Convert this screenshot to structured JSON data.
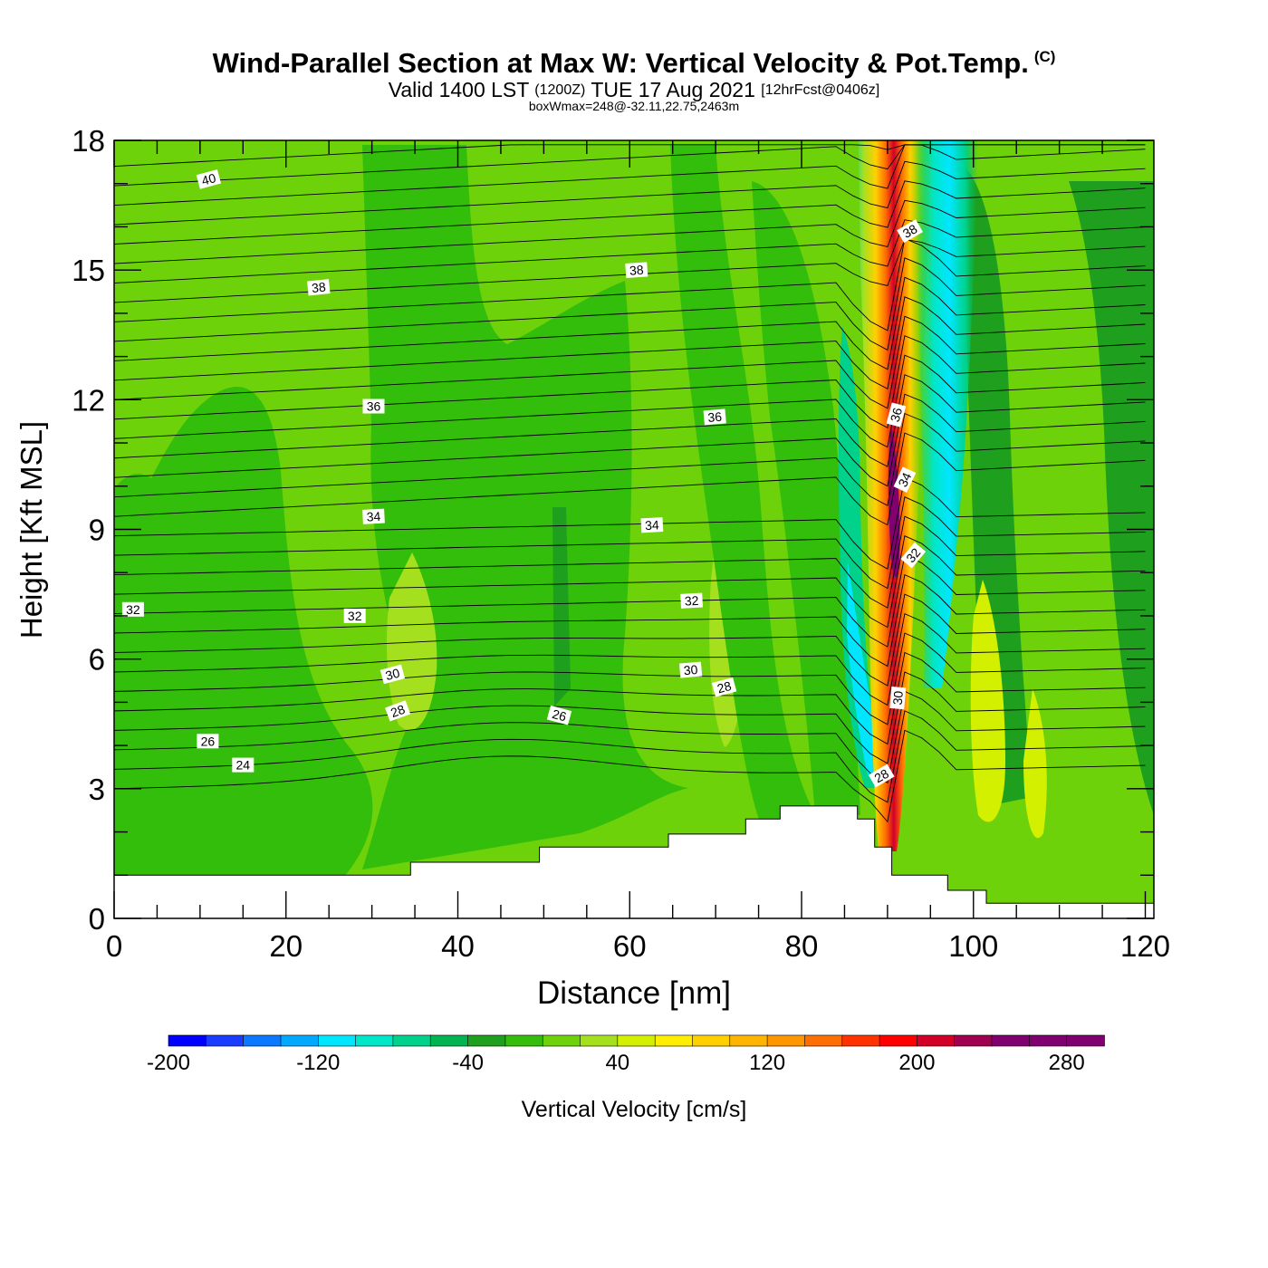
{
  "header": {
    "title": "Wind-Parallel Section at Max W: Vertical Velocity & Pot.Temp.",
    "copyright": "(C)",
    "valid_prefix": "Valid 1400 LST",
    "valid_utc": "(1200Z)",
    "valid_date": "TUE 17 Aug 2021",
    "forecast": "[12hrFcst@0406z]",
    "boxwmax": "boxWmax=248@-32.11,22.75,2463m"
  },
  "chart_data": {
    "type": "heatmap",
    "title": "Wind-Parallel Section at Max W: Vertical Velocity & Pot.Temp.",
    "xlabel": "Distance [nm]",
    "ylabel": "Height [Kft MSL]",
    "xlim": [
      0,
      121
    ],
    "ylim": [
      0,
      18
    ],
    "x_ticks": [
      0,
      20,
      40,
      60,
      80,
      100,
      120
    ],
    "y_ticks": [
      0,
      3,
      6,
      9,
      12,
      15,
      18
    ],
    "colorbar": {
      "label": "Vertical Velocity [cm/s]",
      "min": -200,
      "max": 300,
      "step": 20,
      "tick_labels": [
        "-200",
        "-120",
        "-40",
        "40",
        "120",
        "200",
        "280"
      ],
      "colors": [
        "#0000ff",
        "#1a3cff",
        "#0a78ff",
        "#00a8ff",
        "#00e6ff",
        "#00e6c8",
        "#00d28c",
        "#00b450",
        "#1ea01e",
        "#32be0a",
        "#6ed20a",
        "#a5e01e",
        "#d2f000",
        "#ffee00",
        "#ffd000",
        "#ffb400",
        "#ff9600",
        "#ff6e00",
        "#ff3200",
        "#ff0000",
        "#d20028",
        "#a00050",
        "#800070"
      ]
    },
    "terrain_kft": [
      [
        0,
        1.0
      ],
      [
        34.5,
        1.0
      ],
      [
        34.5,
        1.3
      ],
      [
        49.5,
        1.3
      ],
      [
        49.5,
        1.65
      ],
      [
        64.5,
        1.65
      ],
      [
        64.5,
        1.95
      ],
      [
        73.5,
        1.95
      ],
      [
        73.5,
        2.3
      ],
      [
        77.5,
        2.3
      ],
      [
        77.5,
        2.6
      ],
      [
        86.5,
        2.6
      ],
      [
        86.5,
        2.3
      ],
      [
        88.5,
        2.3
      ],
      [
        88.5,
        1.65
      ],
      [
        90.5,
        1.65
      ],
      [
        90.5,
        1.0
      ],
      [
        97,
        1.0
      ],
      [
        97,
        0.65
      ],
      [
        101.5,
        0.65
      ],
      [
        101.5,
        0.35
      ],
      [
        121,
        0.35
      ]
    ],
    "updraft_max_cm_s": 248,
    "isentrope_labels": [
      {
        "text": "40",
        "x": 11,
        "y": 17.1,
        "rot": -15
      },
      {
        "text": "38",
        "x": 23.8,
        "y": 14.6,
        "rot": -6
      },
      {
        "text": "38",
        "x": 60.8,
        "y": 15.0,
        "rot": -4
      },
      {
        "text": "38",
        "x": 92.6,
        "y": 15.9,
        "rot": -30
      },
      {
        "text": "36",
        "x": 30.2,
        "y": 11.85,
        "rot": 0
      },
      {
        "text": "36",
        "x": 69.9,
        "y": 11.6,
        "rot": -5
      },
      {
        "text": "36",
        "x": 91.0,
        "y": 11.65,
        "rot": -75
      },
      {
        "text": "34",
        "x": 30.2,
        "y": 9.3,
        "rot": -3
      },
      {
        "text": "34",
        "x": 62.6,
        "y": 9.1,
        "rot": -3
      },
      {
        "text": "34",
        "x": 92.0,
        "y": 10.15,
        "rot": -65
      },
      {
        "text": "32",
        "x": 2.2,
        "y": 7.15,
        "rot": 0
      },
      {
        "text": "32",
        "x": 28.0,
        "y": 7.0,
        "rot": 0
      },
      {
        "text": "32",
        "x": 67.2,
        "y": 7.35,
        "rot": -3
      },
      {
        "text": "32",
        "x": 93.0,
        "y": 8.4,
        "rot": -50
      },
      {
        "text": "30",
        "x": 32.4,
        "y": 5.65,
        "rot": -15
      },
      {
        "text": "30",
        "x": 67.1,
        "y": 5.75,
        "rot": -5
      },
      {
        "text": "30",
        "x": 91.2,
        "y": 5.1,
        "rot": -85
      },
      {
        "text": "28",
        "x": 33.0,
        "y": 4.8,
        "rot": -20
      },
      {
        "text": "28",
        "x": 71.0,
        "y": 5.35,
        "rot": -15
      },
      {
        "text": "28",
        "x": 89.3,
        "y": 3.3,
        "rot": -30
      },
      {
        "text": "26",
        "x": 10.9,
        "y": 4.1,
        "rot": 0
      },
      {
        "text": "26",
        "x": 51.8,
        "y": 4.7,
        "rot": 15
      },
      {
        "text": "24",
        "x": 15.0,
        "y": 3.55,
        "rot": 0
      }
    ]
  }
}
